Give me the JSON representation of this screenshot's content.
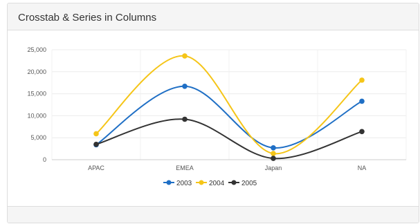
{
  "panel": {
    "title": "Crosstab & Series in Columns"
  },
  "chart_data": {
    "type": "line",
    "categories": [
      "APAC",
      "EMEA",
      "Japan",
      "NA"
    ],
    "series": [
      {
        "name": "2003",
        "color": "#1f6fc5",
        "values": [
          3400,
          16700,
          2700,
          13300
        ]
      },
      {
        "name": "2004",
        "color": "#f5c518",
        "values": [
          5900,
          23600,
          1400,
          18100
        ]
      },
      {
        "name": "2005",
        "color": "#333333",
        "values": [
          3500,
          9200,
          300,
          6400
        ]
      }
    ],
    "yticks": [
      "25,000",
      "20,000",
      "15,000",
      "10,000",
      "5,000",
      "0"
    ],
    "ylim": [
      0,
      25000
    ],
    "curve": "smooth",
    "grid": true,
    "legend_position": "bottom"
  }
}
